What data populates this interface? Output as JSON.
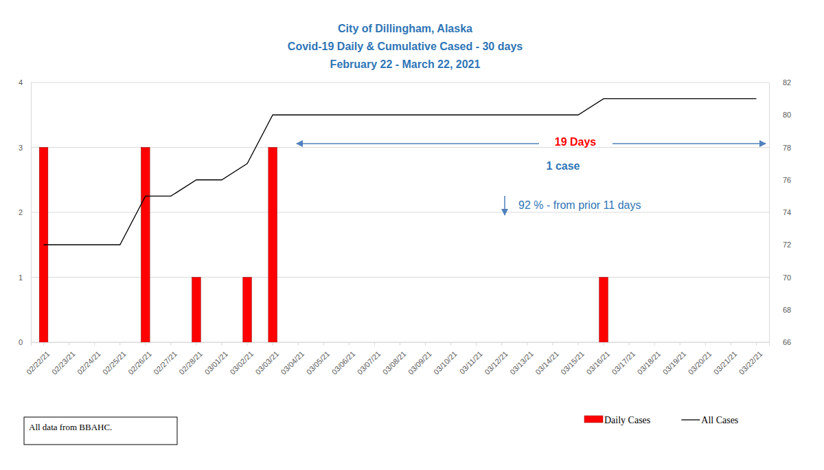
{
  "chart_data": {
    "type": "bar",
    "title": [
      "City of Dillingham,  Alaska",
      "Covid-19 Daily & Cumulative Cased - 30 days",
      "February 22 - March 22, 2021"
    ],
    "categories": [
      "02/22/21",
      "02/23/21",
      "02/24/21",
      "02/25/21",
      "02/26/21",
      "02/27/21",
      "02/28/21",
      "03/01/21",
      "03/02/21",
      "03/03/21",
      "03/04/21",
      "03/05/21",
      "03/06/21",
      "03/07/21",
      "03/08/21",
      "03/09/21",
      "03/10/21",
      "03/11/21",
      "03/12/21",
      "03/13/21",
      "03/14/21",
      "03/15/21",
      "03/16/21",
      "03/17/21",
      "03/18/21",
      "03/19/21",
      "03/20/21",
      "03/21/21",
      "03/22/21"
    ],
    "series": [
      {
        "name": "Daily Cases",
        "type": "bar",
        "color": "#ff0000",
        "values": [
          3,
          0,
          0,
          0,
          3,
          0,
          1,
          0,
          1,
          3,
          0,
          0,
          0,
          0,
          0,
          0,
          0,
          0,
          0,
          0,
          0,
          0,
          1,
          0,
          0,
          0,
          0,
          0,
          0
        ]
      },
      {
        "name": "All Cases",
        "type": "line",
        "color": "#000000",
        "axis": "y2",
        "values": [
          72,
          72,
          72,
          72,
          75,
          75,
          76,
          76,
          77,
          80,
          80,
          80,
          80,
          80,
          80,
          80,
          80,
          80,
          80,
          80,
          80,
          80,
          81,
          81,
          81,
          81,
          81,
          81,
          81
        ]
      }
    ],
    "ylim": [
      0,
      4
    ],
    "yticks": [
      0,
      1,
      2,
      3,
      4
    ],
    "y2lim": [
      66,
      82
    ],
    "y2ticks": [
      66,
      68,
      70,
      72,
      74,
      76,
      78,
      80,
      82
    ],
    "grid": true,
    "legend": "bottom-right",
    "annotations": [
      {
        "text": "19 Days",
        "color": "#ff0000"
      },
      {
        "text": "1 case",
        "color": "#2e75b6"
      },
      {
        "text": "92 % - from prior 11 days",
        "color": "#2e75b6"
      }
    ],
    "source": "All data from BBAHC."
  }
}
